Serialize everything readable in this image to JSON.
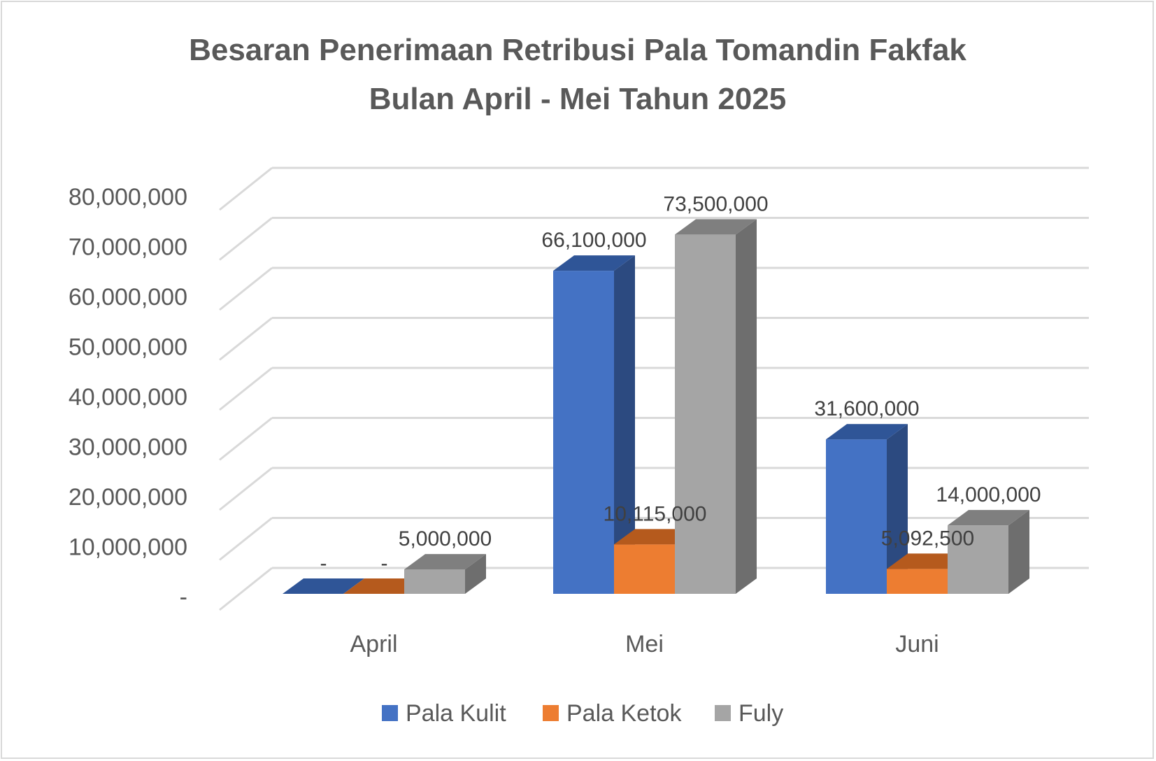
{
  "chart_data": {
    "type": "bar",
    "title_line1": "Besaran Penerimaan Retribusi Pala Tomandin Fakfak",
    "title_line2": "Bulan April - Mei Tahun 2025",
    "categories": [
      "April",
      "Mei",
      "Juni"
    ],
    "series": [
      {
        "name": "Pala Kulit",
        "values": [
          0,
          66100000,
          31600000
        ],
        "labels": [
          "-",
          "66,100,000",
          "31,600,000"
        ],
        "color": "#4472C4",
        "side": "#2C4A80",
        "top": "#2F5597"
      },
      {
        "name": "Pala Ketok",
        "values": [
          0,
          10115000,
          5092500
        ],
        "labels": [
          "-",
          "10,115,000",
          "5,092,500"
        ],
        "color": "#ED7D31",
        "side": "#A9561F",
        "top": "#B55A1D"
      },
      {
        "name": "Fuly",
        "values": [
          5000000,
          73500000,
          14000000
        ],
        "labels": [
          "5,000,000",
          "73,500,000",
          "14,000,000"
        ],
        "color": "#A5A5A5",
        "side": "#6E6E6E",
        "top": "#7F7F7F"
      }
    ],
    "ylim": [
      0,
      80000000
    ],
    "ytick_values": [
      0,
      10000000,
      20000000,
      30000000,
      40000000,
      50000000,
      60000000,
      70000000,
      80000000
    ],
    "ytick_labels": [
      "-",
      "10,000,000",
      "20,000,000",
      "30,000,000",
      "40,000,000",
      "50,000,000",
      "60,000,000",
      "70,000,000",
      "80,000,000"
    ],
    "grid": true,
    "legend_position": "bottom",
    "three_d": true
  }
}
